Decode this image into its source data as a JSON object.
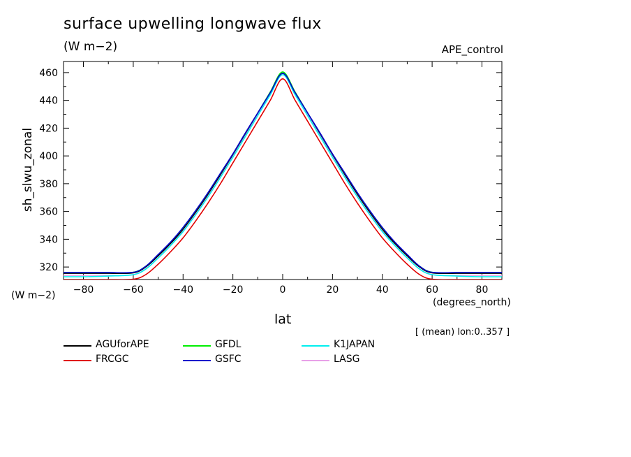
{
  "header": {
    "title": "surface upwelling longwave flux",
    "units": "(W m−2)",
    "run_name": "APE_control"
  },
  "axes": {
    "y_unit_left": "(W m−2)",
    "x_unit_right": "(degrees_north)",
    "x_label": "lat",
    "y_label": "sh_slwu_zonal",
    "note": "[ (mean) lon:0..357 ]"
  },
  "legend": [
    {
      "name": "AGUforAPE",
      "color": "#000000"
    },
    {
      "name": "GFDL",
      "color": "#00ee00"
    },
    {
      "name": "K1JAPAN",
      "color": "#00eeee"
    },
    {
      "name": "FRCGC",
      "color": "#e00000"
    },
    {
      "name": "GSFC",
      "color": "#0000cc"
    },
    {
      "name": "LASG",
      "color": "#e8a0e8"
    }
  ],
  "chart_data": {
    "type": "line",
    "title": "surface upwelling longwave flux",
    "xlabel": "lat",
    "ylabel": "sh_slwu_zonal",
    "xlim": [
      -88,
      88
    ],
    "ylim": [
      311,
      468
    ],
    "x_ticks": [
      -80,
      -60,
      -40,
      -20,
      0,
      20,
      40,
      60,
      80
    ],
    "y_ticks": [
      320,
      340,
      360,
      380,
      400,
      420,
      440,
      460
    ],
    "grid": false,
    "legend_position": "bottom",
    "x": [
      -88,
      -80,
      -70,
      -60,
      -55,
      -50,
      -45,
      -40,
      -35,
      -30,
      -25,
      -20,
      -15,
      -10,
      -5,
      0,
      5,
      10,
      15,
      20,
      25,
      30,
      35,
      40,
      45,
      50,
      55,
      60,
      70,
      80,
      88
    ],
    "series": [
      {
        "name": "AGUforAPE",
        "color": "#000000",
        "values": [
          315.5,
          315.5,
          315.5,
          315.8,
          320,
          328,
          337,
          347,
          359,
          372,
          386,
          400,
          415,
          430,
          445,
          459.5,
          445,
          430,
          415,
          400,
          386,
          372,
          359,
          347,
          337,
          328,
          320,
          315.8,
          315.5,
          315.5,
          315.5
        ]
      },
      {
        "name": "GFDL",
        "color": "#00ee00",
        "values": [
          316,
          316,
          316,
          316.2,
          320.5,
          328.5,
          337.5,
          347.5,
          359.5,
          372.5,
          386.5,
          401,
          416,
          431,
          446,
          460.5,
          446,
          431,
          416,
          401,
          386.5,
          372.5,
          359.5,
          347.5,
          337.5,
          328.5,
          320.5,
          316.2,
          316,
          316,
          316
        ]
      },
      {
        "name": "K1JAPAN",
        "color": "#00eeee",
        "values": [
          313,
          313,
          313.5,
          314.5,
          318.5,
          326.5,
          335.5,
          345.5,
          357.5,
          370.5,
          384.5,
          399,
          414,
          429,
          444,
          458.5,
          444,
          429,
          414,
          399,
          384.5,
          370.5,
          357.5,
          345.5,
          335.5,
          326.5,
          318.5,
          314.5,
          313.5,
          313,
          313
        ]
      },
      {
        "name": "FRCGC",
        "color": "#e00000",
        "values": [
          311,
          311,
          311,
          311.2,
          314.5,
          322,
          331,
          341,
          353,
          366,
          380,
          395,
          410,
          425,
          440,
          455.5,
          440,
          425,
          410,
          395,
          380,
          366,
          353,
          341,
          331,
          322,
          314.5,
          311.2,
          311,
          311,
          311
        ]
      },
      {
        "name": "GSFC",
        "color": "#0000cc",
        "values": [
          316,
          316,
          316,
          316.2,
          320.5,
          329,
          338,
          348.5,
          360.5,
          373.5,
          387.5,
          401.5,
          416.5,
          431,
          445.5,
          459.5,
          445.5,
          431,
          416.5,
          401.5,
          387.5,
          373.5,
          360.5,
          348.5,
          338,
          329,
          320.5,
          316.2,
          316,
          316,
          316
        ]
      },
      {
        "name": "LASG",
        "color": "#e8a0e8",
        "values": [
          314,
          314,
          314,
          314.5,
          318.5,
          326.5,
          335.5,
          346,
          358,
          371,
          385,
          399.5,
          414.5,
          429.5,
          444.5,
          458.5,
          444.5,
          429.5,
          414.5,
          399.5,
          385,
          371,
          358,
          346,
          335.5,
          326.5,
          318.5,
          314.5,
          314,
          314,
          314
        ]
      }
    ]
  }
}
